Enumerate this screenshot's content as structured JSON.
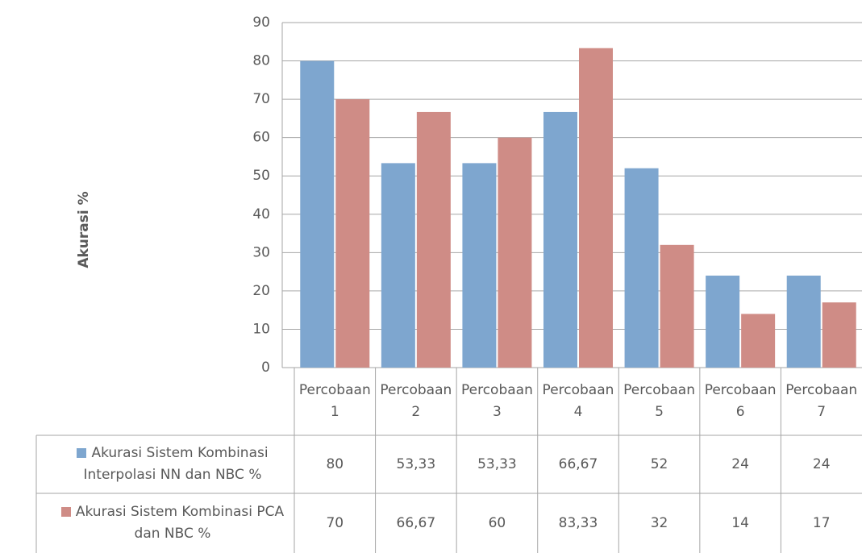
{
  "chart_data": {
    "type": "bar",
    "y_label": "Akurasi %",
    "categories": [
      "Percobaan 1",
      "Percobaan 2",
      "Percobaan 3",
      "Percobaan 4",
      "Percobaan 5",
      "Percobaan 6",
      "Percobaan 7"
    ],
    "series": [
      {
        "name": "Akurasi Sistem Kombinasi Interpolasi NN dan NBC %",
        "color": "#7ea6cf",
        "values": [
          80,
          53.33,
          53.33,
          66.67,
          52,
          24,
          24
        ],
        "value_labels": [
          "80",
          "53,33",
          "53,33",
          "66,67",
          "52",
          "24",
          "24"
        ]
      },
      {
        "name": "Akurasi Sistem Kombinasi PCA dan NBC %",
        "color": "#cf8c86",
        "values": [
          70,
          66.67,
          60,
          83.33,
          32,
          14,
          17
        ],
        "value_labels": [
          "70",
          "66,67",
          "60",
          "83,33",
          "32",
          "14",
          "17"
        ]
      }
    ],
    "ylim": [
      0,
      90
    ],
    "yticks": [
      0,
      10,
      20,
      30,
      40,
      50,
      60,
      70,
      80,
      90
    ],
    "grid": true
  }
}
